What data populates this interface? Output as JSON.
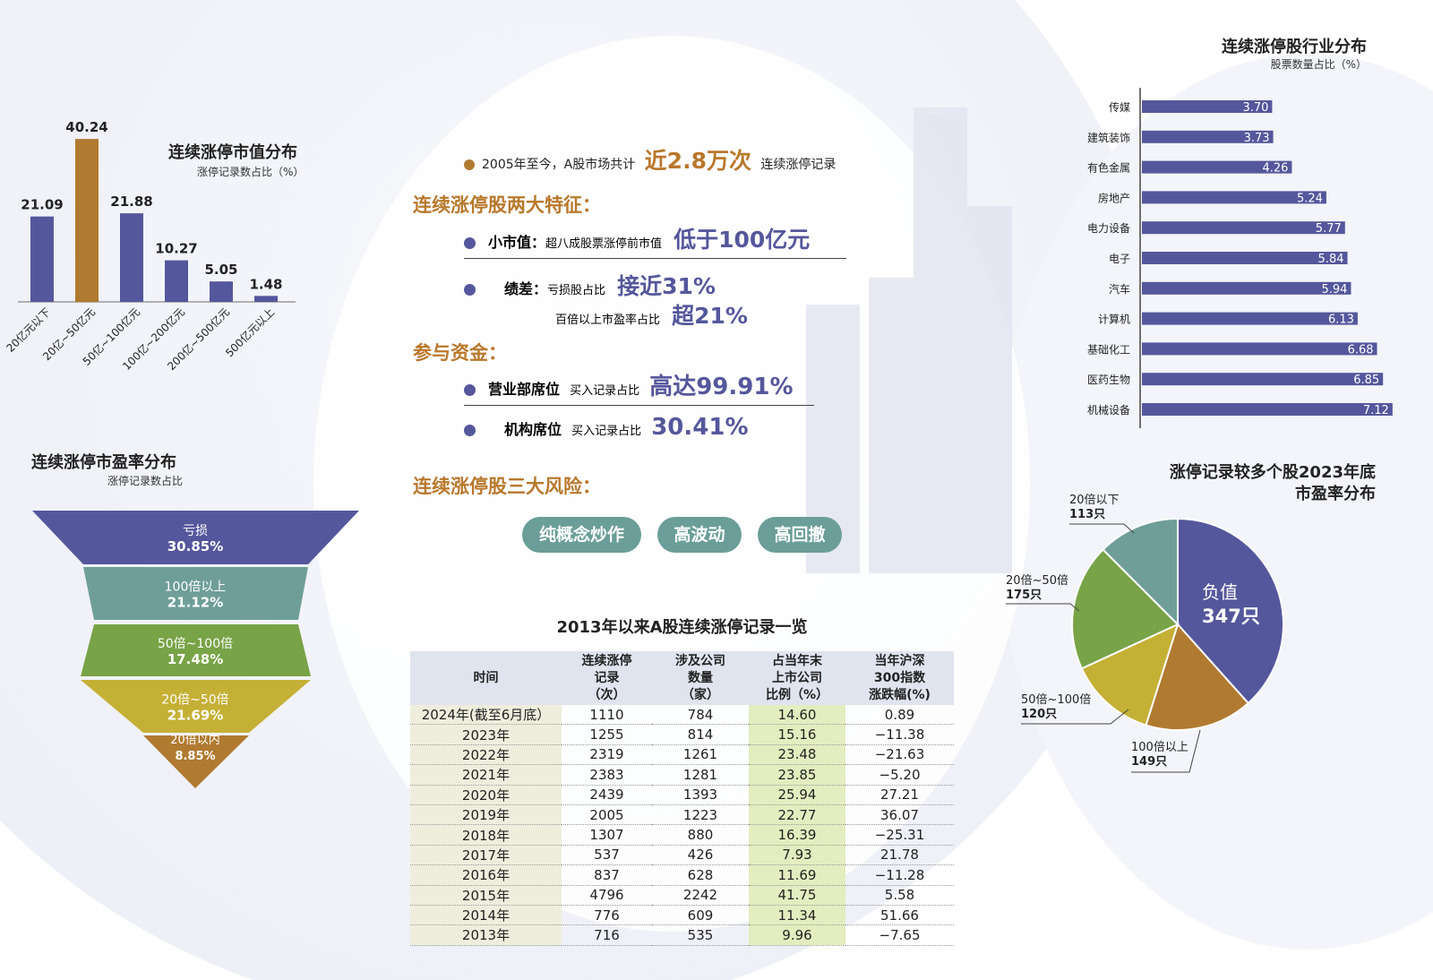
{
  "headline": {
    "prefix": "2005年至今，A股市场共计",
    "highlight": "近2.8万次",
    "suffix": "连续涨停记录"
  },
  "features": {
    "title": "连续涨停股两大特征：",
    "small_cap": {
      "label": "小市值：",
      "desc": "超八成股票涨停前市值",
      "value": "低于100亿元"
    },
    "poor_perf": {
      "label": "绩差：",
      "desc": "亏损股占比",
      "value": "接近31%",
      "desc2": "百倍以上市盈率占比",
      "value2": "超21%"
    }
  },
  "funds": {
    "title": "参与资金：",
    "brokerage": {
      "label": "营业部席位",
      "desc": "买入记录占比",
      "value": "高达99.91%"
    },
    "institution": {
      "label": "机构席位",
      "desc": "买入记录占比",
      "value": "30.41%"
    }
  },
  "risks": {
    "title": "连续涨停股三大风险：",
    "items": [
      "纯概念炒作",
      "高波动",
      "高回撤"
    ]
  },
  "colors": {
    "purple": "#55579c",
    "orange": "#b07a30",
    "teal": "#6f9e98",
    "green": "#78a347",
    "yellow": "#c5b036"
  },
  "chart_data": [
    {
      "type": "bar",
      "title": "连续涨停市值分布",
      "subtitle": "涨停记录数占比（%）",
      "categories": [
        "20亿元以下",
        "20亿~50亿元",
        "50亿~100亿元",
        "100亿~200亿元",
        "200亿~500亿元",
        "500亿元以上"
      ],
      "values": [
        21.09,
        40.24,
        21.88,
        10.27,
        5.05,
        1.48
      ],
      "labels": [
        "21.09",
        "40.24",
        "21.88",
        "10.27",
        "5.05",
        "1.48"
      ],
      "highlight_index": 1
    },
    {
      "type": "funnel",
      "title": "连续涨停市盈率分布",
      "subtitle": "涨停记录数占比",
      "categories": [
        "亏损",
        "100倍以上",
        "50倍~100倍",
        "20倍~50倍",
        "20倍以内"
      ],
      "values": [
        30.85,
        21.12,
        17.48,
        21.69,
        8.85
      ],
      "labels": [
        "30.85%",
        "21.12%",
        "17.48%",
        "21.69%",
        "8.85%"
      ],
      "colors": [
        "#55579c",
        "#6f9e98",
        "#78a347",
        "#c5b036",
        "#b07a30"
      ]
    },
    {
      "type": "bar",
      "orientation": "horizontal",
      "title": "连续涨停股行业分布",
      "subtitle": "股票数量占比（%）",
      "categories": [
        "传媒",
        "建筑装饰",
        "有色金属",
        "房地产",
        "电力设备",
        "电子",
        "汽车",
        "计算机",
        "基础化工",
        "医药生物",
        "机械设备"
      ],
      "values": [
        3.7,
        3.73,
        4.26,
        5.24,
        5.77,
        5.84,
        5.94,
        6.13,
        6.68,
        6.85,
        7.12
      ],
      "labels": [
        "3.70",
        "3.73",
        "4.26",
        "5.24",
        "5.77",
        "5.84",
        "5.94",
        "6.13",
        "6.68",
        "6.85",
        "7.12"
      ]
    },
    {
      "type": "pie",
      "title": "涨停记录较多个股2023年底",
      "title2": "市盈率分布",
      "slices": [
        {
          "name": "负值",
          "value": 347,
          "label": "347只",
          "color": "#55579c"
        },
        {
          "name": "100倍以上",
          "value": 149,
          "label": "149只",
          "color": "#b07a30"
        },
        {
          "name": "50倍~100倍",
          "value": 120,
          "label": "120只",
          "color": "#c5b036"
        },
        {
          "name": "20倍~50倍",
          "value": 175,
          "label": "175只",
          "color": "#78a347"
        },
        {
          "name": "20倍以下",
          "value": 113,
          "label": "113只",
          "color": "#6f9e98"
        }
      ]
    },
    {
      "type": "table",
      "title": "2013年以来A股连续涨停记录一览",
      "columns": [
        "时间",
        "连续涨停\n记录\n（次）",
        "涉及公司\n数量\n（家）",
        "占当年末\n上市公司\n比例（%）",
        "当年沪深\n300指数\n涨跌幅(%)"
      ],
      "rows": [
        [
          "2024年(截至6月底）",
          "1110",
          "784",
          "14.60",
          "0.89"
        ],
        [
          "2023年",
          "1255",
          "814",
          "15.16",
          "−11.38"
        ],
        [
          "2022年",
          "2319",
          "1261",
          "23.48",
          "−21.63"
        ],
        [
          "2021年",
          "2383",
          "1281",
          "23.85",
          "−5.20"
        ],
        [
          "2020年",
          "2439",
          "1393",
          "25.94",
          "27.21"
        ],
        [
          "2019年",
          "2005",
          "1223",
          "22.77",
          "36.07"
        ],
        [
          "2018年",
          "1307",
          "880",
          "16.39",
          "−25.31"
        ],
        [
          "2017年",
          "537",
          "426",
          "7.93",
          "21.78"
        ],
        [
          "2016年",
          "837",
          "628",
          "11.69",
          "−11.28"
        ],
        [
          "2015年",
          "4796",
          "2242",
          "41.75",
          "5.58"
        ],
        [
          "2014年",
          "776",
          "609",
          "11.34",
          "51.66"
        ],
        [
          "2013年",
          "716",
          "535",
          "9.96",
          "−7.65"
        ]
      ]
    }
  ]
}
